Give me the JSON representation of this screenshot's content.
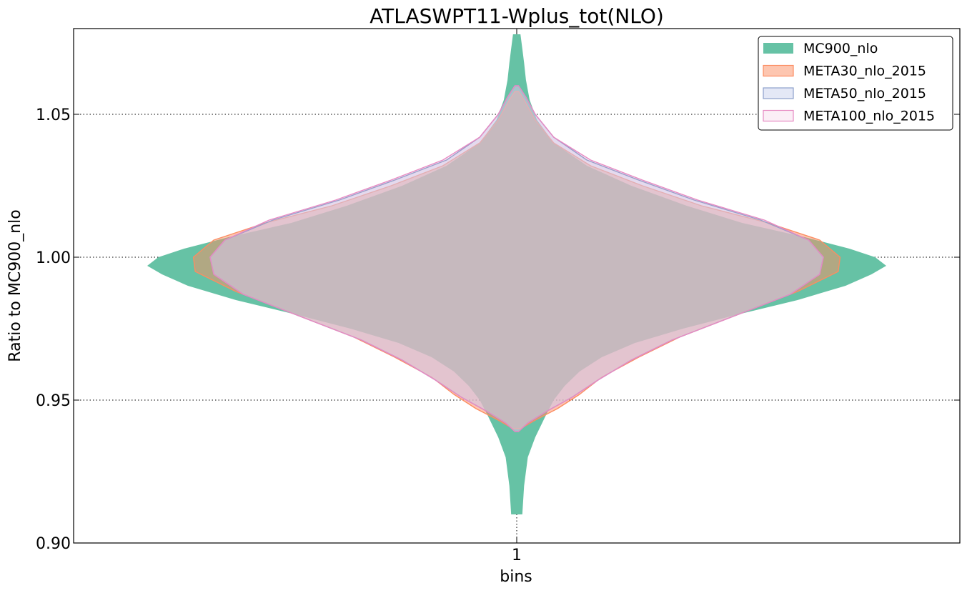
{
  "chart_data": {
    "type": "violin",
    "title": "ATLASWPT11-Wplus_tot(NLO)",
    "xlabel": "bins",
    "ylabel": "Ratio to MC900_nlo",
    "categories": [
      "1"
    ],
    "ylim": [
      0.9,
      1.08
    ],
    "yticks": [
      0.9,
      0.95,
      1.0,
      1.05
    ],
    "ytick_labels": [
      "0.90",
      "0.95",
      "1.00",
      "1.05"
    ],
    "grid": true,
    "legend_position": "top-right",
    "series": [
      {
        "name": "MC900_nlo",
        "color": "#66c2a5",
        "fill": "#66c2a5",
        "opacity": 1.0,
        "outline": false,
        "profile": [
          [
            0.91,
            0.015
          ],
          [
            0.92,
            0.02
          ],
          [
            0.93,
            0.03
          ],
          [
            0.937,
            0.05
          ],
          [
            0.945,
            0.08
          ],
          [
            0.95,
            0.1
          ],
          [
            0.955,
            0.13
          ],
          [
            0.96,
            0.17
          ],
          [
            0.965,
            0.23
          ],
          [
            0.97,
            0.32
          ],
          [
            0.975,
            0.45
          ],
          [
            0.98,
            0.6
          ],
          [
            0.985,
            0.76
          ],
          [
            0.99,
            0.89
          ],
          [
            0.994,
            0.96
          ],
          [
            0.997,
            1.0
          ],
          [
            1.0,
            0.97
          ],
          [
            1.003,
            0.9
          ],
          [
            1.007,
            0.78
          ],
          [
            1.012,
            0.61
          ],
          [
            1.018,
            0.46
          ],
          [
            1.025,
            0.31
          ],
          [
            1.032,
            0.19
          ],
          [
            1.04,
            0.1
          ],
          [
            1.048,
            0.055
          ],
          [
            1.055,
            0.035
          ],
          [
            1.062,
            0.025
          ],
          [
            1.068,
            0.02
          ],
          [
            1.073,
            0.015
          ],
          [
            1.078,
            0.01
          ]
        ]
      },
      {
        "name": "META30_nlo_2015",
        "color": "#fc8d62",
        "fill": "#fc8d62",
        "opacity": 0.5,
        "outline": true,
        "profile": [
          [
            0.94,
            0.01
          ],
          [
            0.943,
            0.05
          ],
          [
            0.947,
            0.11
          ],
          [
            0.952,
            0.17
          ],
          [
            0.958,
            0.23
          ],
          [
            0.965,
            0.33
          ],
          [
            0.972,
            0.44
          ],
          [
            0.98,
            0.6
          ],
          [
            0.988,
            0.76
          ],
          [
            0.995,
            0.87
          ],
          [
            1.0,
            0.875
          ],
          [
            1.006,
            0.82
          ],
          [
            1.012,
            0.68
          ],
          [
            1.018,
            0.5
          ],
          [
            1.025,
            0.34
          ],
          [
            1.032,
            0.2
          ],
          [
            1.04,
            0.1
          ],
          [
            1.048,
            0.05
          ],
          [
            1.055,
            0.02
          ],
          [
            1.058,
            0.005
          ]
        ]
      },
      {
        "name": "META50_nlo_2015",
        "color": "#8da0cb",
        "fill": "#cdd6ee",
        "opacity": 0.55,
        "outline": true,
        "profile": [
          [
            0.939,
            0.005
          ],
          [
            0.942,
            0.03
          ],
          [
            0.946,
            0.08
          ],
          [
            0.951,
            0.15
          ],
          [
            0.957,
            0.22
          ],
          [
            0.964,
            0.31
          ],
          [
            0.971,
            0.42
          ],
          [
            0.979,
            0.58
          ],
          [
            0.987,
            0.74
          ],
          [
            0.994,
            0.82
          ],
          [
            1.0,
            0.83
          ],
          [
            1.006,
            0.79
          ],
          [
            1.013,
            0.66
          ],
          [
            1.02,
            0.48
          ],
          [
            1.027,
            0.33
          ],
          [
            1.034,
            0.19
          ],
          [
            1.042,
            0.1
          ],
          [
            1.05,
            0.05
          ],
          [
            1.056,
            0.025
          ],
          [
            1.06,
            0.005
          ]
        ]
      },
      {
        "name": "META100_nlo_2015",
        "color": "#e78ac3",
        "fill": "#e78ac3",
        "opacity": 0.15,
        "outline": true,
        "profile": [
          [
            0.939,
            0.005
          ],
          [
            0.942,
            0.03
          ],
          [
            0.946,
            0.08
          ],
          [
            0.951,
            0.15
          ],
          [
            0.957,
            0.22
          ],
          [
            0.964,
            0.31
          ],
          [
            0.971,
            0.42
          ],
          [
            0.979,
            0.58
          ],
          [
            0.987,
            0.74
          ],
          [
            0.994,
            0.82
          ],
          [
            1.0,
            0.83
          ],
          [
            1.006,
            0.79
          ],
          [
            1.013,
            0.67
          ],
          [
            1.02,
            0.49
          ],
          [
            1.027,
            0.34
          ],
          [
            1.034,
            0.2
          ],
          [
            1.042,
            0.1
          ],
          [
            1.05,
            0.05
          ],
          [
            1.056,
            0.025
          ],
          [
            1.06,
            0.005
          ]
        ]
      }
    ]
  }
}
